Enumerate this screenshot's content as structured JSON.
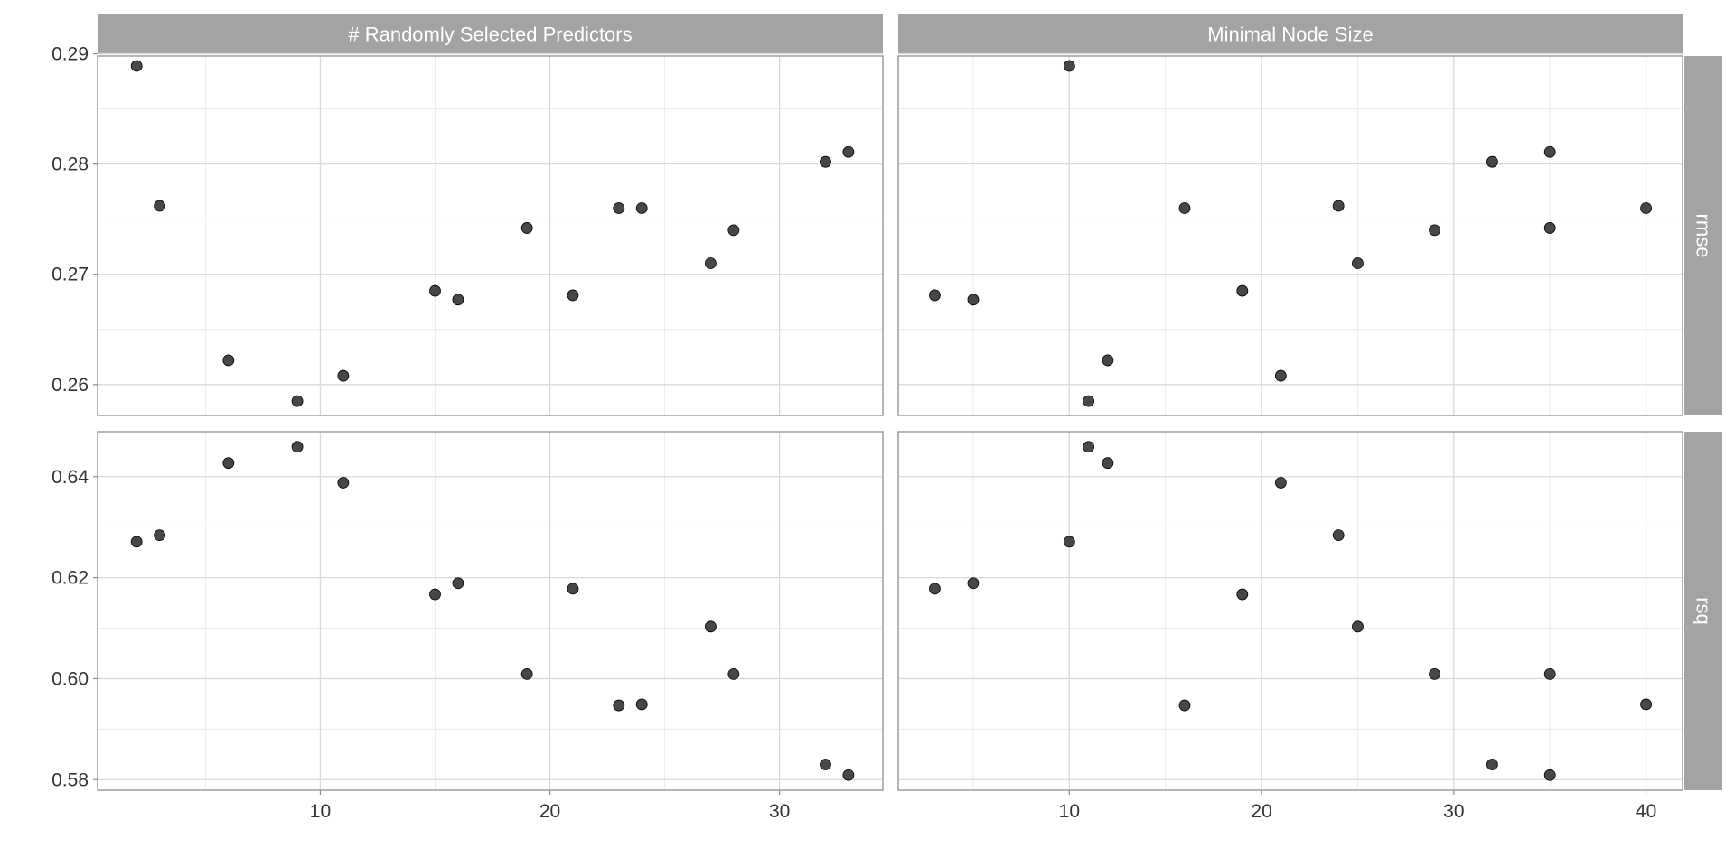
{
  "chart_data": {
    "type": "scatter",
    "layout": "facet-grid",
    "facet_columns": [
      "# Randomly Selected Predictors",
      "Minimal Node Size"
    ],
    "facet_rows": [
      "rmse",
      "rsq"
    ],
    "grid": true,
    "columns": [
      {
        "label": "# Randomly Selected Predictors",
        "xlim": [
          0.3,
          34.5
        ],
        "x_ticks": [
          10,
          20,
          30
        ],
        "x_tick_labels": [
          "10",
          "20",
          "30"
        ],
        "x": [
          2,
          3,
          6,
          9,
          11,
          15,
          16,
          19,
          21,
          23,
          24,
          27,
          28,
          32,
          33
        ]
      },
      {
        "label": "Minimal Node Size",
        "xlim": [
          1.1,
          41.9
        ],
        "x_ticks": [
          10,
          20,
          30,
          40
        ],
        "x_tick_labels": [
          "10",
          "20",
          "30",
          "40"
        ],
        "x": [
          10,
          24,
          12,
          11,
          21,
          19,
          5,
          35,
          3,
          16,
          40,
          25,
          29,
          32,
          35
        ]
      }
    ],
    "rows": [
      {
        "label": "rmse",
        "ylim": [
          0.2572,
          0.2898
        ],
        "y_ticks": [
          0.26,
          0.27,
          0.28,
          0.29
        ],
        "y_tick_labels": [
          "0.26",
          "0.27",
          "0.28",
          "0.29"
        ],
        "y": [
          0.2889,
          0.2762,
          0.2622,
          0.2585,
          0.2608,
          0.2685,
          0.2677,
          0.2742,
          0.2681,
          0.276,
          0.276,
          0.271,
          0.274,
          0.2802,
          0.2811
        ]
      },
      {
        "label": "rsq",
        "ylim": [
          0.5779,
          0.6489
        ],
        "y_ticks": [
          0.58,
          0.6,
          0.62,
          0.64
        ],
        "y_tick_labels": [
          "0.58",
          "0.60",
          "0.62",
          "0.64"
        ],
        "y": [
          0.6271,
          0.6284,
          0.6427,
          0.6459,
          0.6388,
          0.6167,
          0.6189,
          0.6009,
          0.6178,
          0.5947,
          0.5949,
          0.6103,
          0.6009,
          0.583,
          0.5809
        ]
      }
    ]
  }
}
